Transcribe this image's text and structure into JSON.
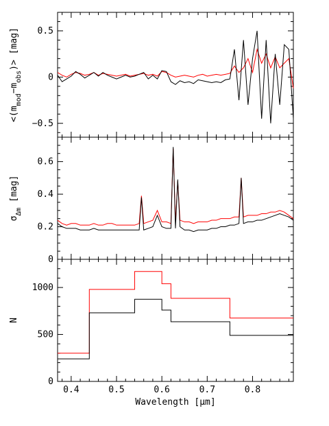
{
  "chart_data": [
    {
      "type": "line",
      "ylabel": "<(m_mod−m_obs)> [mag]",
      "xlim": [
        0.37,
        0.89
      ],
      "ylim": [
        -0.65,
        0.7
      ],
      "yticks": [
        -0.5,
        0,
        0.5
      ],
      "ytick_labels": [
        "−0.5",
        "0",
        "0.5"
      ],
      "grid": false,
      "series": [
        {
          "color": "#ff0000",
          "x": [
            0.37,
            0.38,
            0.39,
            0.4,
            0.41,
            0.42,
            0.43,
            0.44,
            0.45,
            0.46,
            0.47,
            0.48,
            0.49,
            0.5,
            0.51,
            0.52,
            0.53,
            0.54,
            0.55,
            0.56,
            0.57,
            0.58,
            0.59,
            0.6,
            0.61,
            0.62,
            0.63,
            0.64,
            0.65,
            0.66,
            0.67,
            0.68,
            0.69,
            0.7,
            0.71,
            0.72,
            0.73,
            0.74,
            0.75,
            0.76,
            0.77,
            0.78,
            0.79,
            0.8,
            0.81,
            0.82,
            0.83,
            0.84,
            0.85,
            0.86,
            0.87,
            0.88,
            0.89
          ],
          "values": [
            0.05,
            0.02,
            0.0,
            0.03,
            0.05,
            0.04,
            0.02,
            0.03,
            0.05,
            0.02,
            0.04,
            0.03,
            0.02,
            0.01,
            0.02,
            0.03,
            0.01,
            0.02,
            0.03,
            0.04,
            0.02,
            0.03,
            0.01,
            0.06,
            0.05,
            0.02,
            0.0,
            0.01,
            0.02,
            0.01,
            0.0,
            0.02,
            0.03,
            0.01,
            0.02,
            0.03,
            0.02,
            0.03,
            0.04,
            0.12,
            0.05,
            0.1,
            0.2,
            0.05,
            0.3,
            0.15,
            0.25,
            0.1,
            0.22,
            0.1,
            0.15,
            0.2,
            -0.12
          ]
        },
        {
          "color": "#000000",
          "x": [
            0.37,
            0.38,
            0.39,
            0.4,
            0.41,
            0.42,
            0.43,
            0.44,
            0.45,
            0.46,
            0.47,
            0.48,
            0.49,
            0.5,
            0.51,
            0.52,
            0.53,
            0.54,
            0.55,
            0.56,
            0.57,
            0.58,
            0.59,
            0.6,
            0.61,
            0.62,
            0.63,
            0.64,
            0.65,
            0.66,
            0.67,
            0.68,
            0.69,
            0.7,
            0.71,
            0.72,
            0.73,
            0.74,
            0.75,
            0.76,
            0.77,
            0.78,
            0.79,
            0.8,
            0.81,
            0.82,
            0.83,
            0.84,
            0.85,
            0.86,
            0.87,
            0.88,
            0.89
          ],
          "values": [
            0.02,
            -0.05,
            -0.02,
            0.01,
            0.06,
            0.03,
            -0.01,
            0.02,
            0.05,
            0.01,
            0.05,
            0.02,
            0.0,
            -0.02,
            0.0,
            0.02,
            0.0,
            0.01,
            0.03,
            0.05,
            -0.02,
            0.02,
            -0.02,
            0.07,
            0.06,
            -0.05,
            -0.08,
            -0.04,
            -0.06,
            -0.05,
            -0.07,
            -0.03,
            -0.04,
            -0.05,
            -0.06,
            -0.05,
            -0.06,
            -0.03,
            -0.02,
            0.3,
            -0.25,
            0.4,
            -0.3,
            0.2,
            0.5,
            -0.45,
            0.4,
            -0.5,
            0.25,
            -0.3,
            0.35,
            0.3,
            -0.45
          ]
        }
      ]
    },
    {
      "type": "line",
      "ylabel": "σ_Δm [mag]",
      "xlim": [
        0.37,
        0.89
      ],
      "ylim": [
        0,
        0.75
      ],
      "yticks": [
        0,
        0.2,
        0.4,
        0.6
      ],
      "ytick_labels": [
        "0",
        "0.2",
        "0.4",
        "0.6"
      ],
      "grid": false,
      "series": [
        {
          "color": "#ff0000",
          "x": [
            0.37,
            0.38,
            0.39,
            0.4,
            0.41,
            0.42,
            0.43,
            0.44,
            0.45,
            0.46,
            0.47,
            0.48,
            0.49,
            0.5,
            0.51,
            0.52,
            0.53,
            0.54,
            0.55,
            0.555,
            0.56,
            0.57,
            0.58,
            0.59,
            0.6,
            0.61,
            0.62,
            0.625,
            0.63,
            0.635,
            0.64,
            0.65,
            0.66,
            0.67,
            0.68,
            0.69,
            0.7,
            0.71,
            0.72,
            0.73,
            0.74,
            0.75,
            0.76,
            0.77,
            0.775,
            0.78,
            0.79,
            0.8,
            0.81,
            0.82,
            0.83,
            0.84,
            0.85,
            0.86,
            0.87,
            0.88,
            0.89
          ],
          "values": [
            0.24,
            0.22,
            0.21,
            0.22,
            0.22,
            0.21,
            0.21,
            0.21,
            0.22,
            0.21,
            0.21,
            0.22,
            0.22,
            0.21,
            0.21,
            0.21,
            0.21,
            0.21,
            0.22,
            0.39,
            0.22,
            0.23,
            0.24,
            0.3,
            0.23,
            0.23,
            0.22,
            0.68,
            0.23,
            0.48,
            0.24,
            0.23,
            0.23,
            0.22,
            0.23,
            0.23,
            0.23,
            0.24,
            0.24,
            0.25,
            0.25,
            0.25,
            0.26,
            0.26,
            0.5,
            0.26,
            0.27,
            0.27,
            0.27,
            0.28,
            0.28,
            0.29,
            0.29,
            0.3,
            0.29,
            0.27,
            0.25
          ]
        },
        {
          "color": "#000000",
          "x": [
            0.37,
            0.38,
            0.39,
            0.4,
            0.41,
            0.42,
            0.43,
            0.44,
            0.45,
            0.46,
            0.47,
            0.48,
            0.49,
            0.5,
            0.51,
            0.52,
            0.53,
            0.54,
            0.55,
            0.555,
            0.56,
            0.57,
            0.58,
            0.59,
            0.6,
            0.61,
            0.62,
            0.625,
            0.63,
            0.635,
            0.64,
            0.65,
            0.66,
            0.67,
            0.68,
            0.69,
            0.7,
            0.71,
            0.72,
            0.73,
            0.74,
            0.75,
            0.76,
            0.77,
            0.775,
            0.78,
            0.79,
            0.8,
            0.81,
            0.82,
            0.83,
            0.84,
            0.85,
            0.86,
            0.87,
            0.88,
            0.89
          ],
          "values": [
            0.22,
            0.2,
            0.19,
            0.19,
            0.19,
            0.18,
            0.18,
            0.18,
            0.19,
            0.18,
            0.18,
            0.18,
            0.18,
            0.18,
            0.18,
            0.18,
            0.18,
            0.18,
            0.18,
            0.38,
            0.18,
            0.19,
            0.2,
            0.27,
            0.2,
            0.19,
            0.19,
            0.69,
            0.19,
            0.49,
            0.2,
            0.18,
            0.18,
            0.17,
            0.18,
            0.18,
            0.18,
            0.19,
            0.19,
            0.2,
            0.2,
            0.21,
            0.21,
            0.22,
            0.5,
            0.22,
            0.23,
            0.23,
            0.24,
            0.24,
            0.25,
            0.26,
            0.27,
            0.28,
            0.27,
            0.26,
            0.24
          ]
        }
      ]
    },
    {
      "type": "line",
      "xlabel": "Wavelength [μm]",
      "ylabel": "N",
      "xlim": [
        0.37,
        0.89
      ],
      "ylim": [
        0,
        1300
      ],
      "xticks": [
        0.4,
        0.5,
        0.6,
        0.7,
        0.8
      ],
      "xtick_labels": [
        "0.4",
        "0.5",
        "0.6",
        "0.7",
        "0.8"
      ],
      "yticks": [
        0,
        500,
        1000
      ],
      "ytick_labels": [
        "0",
        "500",
        "1000"
      ],
      "grid": false,
      "series": [
        {
          "color": "#ff0000",
          "x": [
            0.37,
            0.44,
            0.44,
            0.54,
            0.54,
            0.6,
            0.6,
            0.62,
            0.62,
            0.75,
            0.75,
            0.89
          ],
          "values": [
            300,
            300,
            980,
            980,
            1170,
            1170,
            1040,
            1040,
            885,
            885,
            675,
            675
          ]
        },
        {
          "color": "#000000",
          "x": [
            0.37,
            0.44,
            0.44,
            0.54,
            0.54,
            0.6,
            0.6,
            0.62,
            0.62,
            0.75,
            0.75,
            0.89
          ],
          "values": [
            240,
            240,
            730,
            730,
            875,
            875,
            760,
            760,
            635,
            635,
            490,
            490
          ]
        }
      ]
    }
  ]
}
